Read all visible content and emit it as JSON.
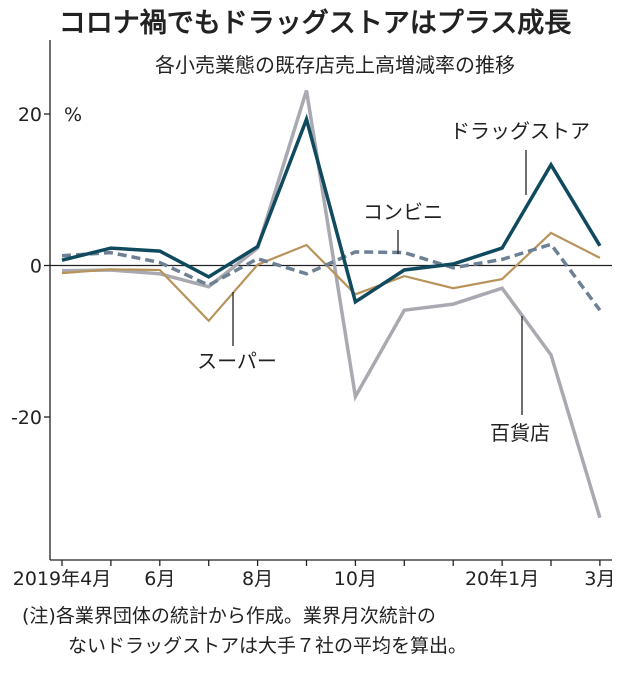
{
  "chart_data": {
    "type": "line",
    "title": "コロナ禍でもドラッグストアはプラス成長",
    "subtitle": "各小売業態の既存店売上高増減率の推移",
    "ylabel": "%",
    "ylim": [
      -39,
      30
    ],
    "yticks": [
      -20,
      0,
      20
    ],
    "ytick_labels": [
      "-20",
      "0",
      "20"
    ],
    "x": [
      "2019-04",
      "2019-05",
      "2019-06",
      "2019-07",
      "2019-08",
      "2019-09",
      "2019-10",
      "2019-11",
      "2019-12",
      "2020-01",
      "2020-02",
      "2020-03"
    ],
    "xtick_labels": [
      {
        "index": 0,
        "label": "2019年4月"
      },
      {
        "index": 2,
        "label": "6月"
      },
      {
        "index": 4,
        "label": "8月"
      },
      {
        "index": 6,
        "label": "10月"
      },
      {
        "index": 9,
        "label": "20年1月"
      },
      {
        "index": 11,
        "label": "3月"
      }
    ],
    "grid": false,
    "series": [
      {
        "name": "百貨店",
        "color": "#a9a9b1",
        "dash": false,
        "values": [
          -0.7,
          -0.6,
          -1.1,
          -2.8,
          2.3,
          23.1,
          -17.3,
          -5.9,
          -5.1,
          -3.0,
          -11.8,
          -33.3
        ]
      },
      {
        "name": "スーパー",
        "color": "#b8935a",
        "dash": false,
        "values": [
          -1.0,
          -0.5,
          -0.6,
          -7.3,
          0.1,
          2.7,
          -3.8,
          -1.4,
          -3.0,
          -1.8,
          4.3,
          1.0
        ]
      },
      {
        "name": "コンビニ",
        "color": "#6e8194",
        "dash": true,
        "values": [
          1.3,
          1.7,
          0.4,
          -2.6,
          0.9,
          -1.1,
          1.8,
          1.7,
          -0.3,
          0.8,
          2.8,
          -5.9
        ]
      },
      {
        "name": "ドラッグストア",
        "color": "#0f4a5f",
        "dash": false,
        "values": [
          0.7,
          2.3,
          1.9,
          -1.5,
          2.5,
          19.3,
          -4.8,
          -0.6,
          0.2,
          2.3,
          13.3,
          2.6
        ]
      }
    ],
    "notes": [
      "(注)各業界団体の統計から作成。業界月次統計の",
      "ないドラッグストアは大手７社の平均を算出。"
    ]
  }
}
